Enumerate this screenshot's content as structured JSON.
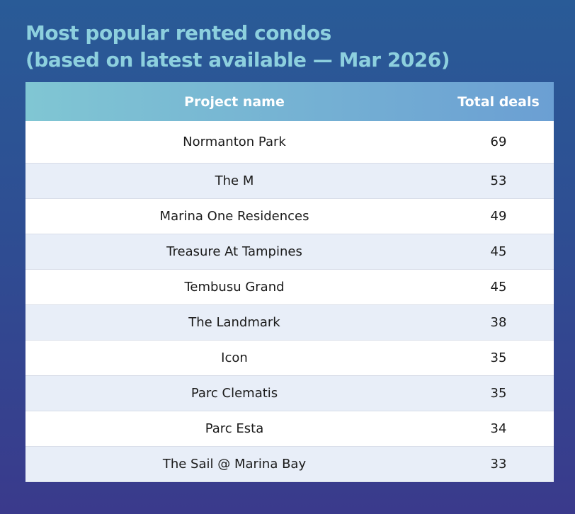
{
  "header": {
    "title": [
      "Most popular rented condos",
      "(based on latest available — Mar 2026)"
    ]
  },
  "table": {
    "columns": [
      "Project name",
      "Total deals"
    ],
    "rows": [
      [
        "Normanton Park",
        69
      ],
      [
        "The M",
        53
      ],
      [
        "Marina One Residences",
        49
      ],
      [
        "Treasure At Tampines",
        45
      ],
      [
        "Tembusu Grand",
        45
      ],
      [
        "The Landmark",
        38
      ],
      [
        "Icon",
        35
      ],
      [
        "Parc Clematis",
        35
      ],
      [
        "Parc Esta",
        34
      ],
      [
        "The Sail @ Marina Bay",
        33
      ]
    ]
  }
}
